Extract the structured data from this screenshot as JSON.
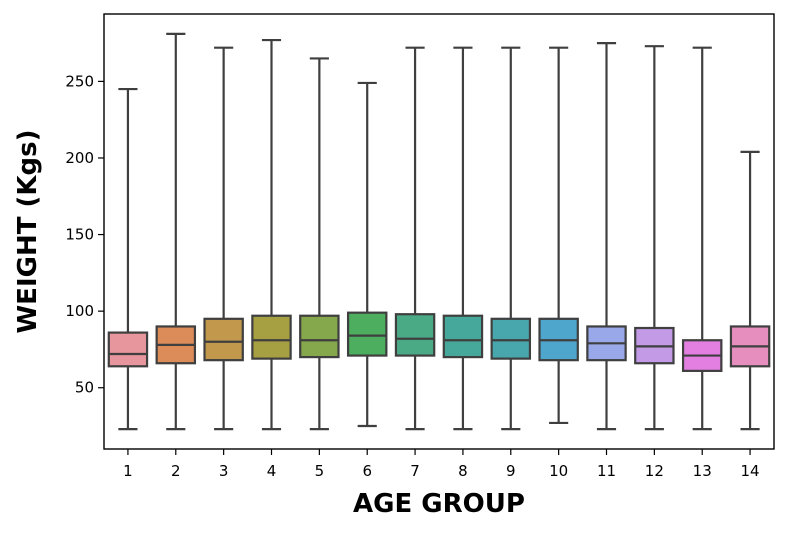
{
  "chart_data": {
    "type": "box",
    "xlabel": "AGE GROUP",
    "ylabel": "WEIGHT (Kgs)",
    "ylim": [
      10,
      294
    ],
    "yticks": [
      50,
      100,
      150,
      200,
      250
    ],
    "grid": false,
    "legend": "none",
    "categories": [
      "1",
      "2",
      "3",
      "4",
      "5",
      "6",
      "7",
      "8",
      "9",
      "10",
      "11",
      "12",
      "13",
      "14"
    ],
    "boxes": [
      {
        "category": "1",
        "whisker_low": 23,
        "q1": 64,
        "median": 72,
        "q3": 86,
        "whisker_high": 245,
        "color": "#e7969d"
      },
      {
        "category": "2",
        "whisker_low": 23,
        "q1": 66,
        "median": 78,
        "q3": 90,
        "whisker_high": 281,
        "color": "#db8c58"
      },
      {
        "category": "3",
        "whisker_low": 23,
        "q1": 68,
        "median": 80,
        "q3": 95,
        "whisker_high": 272,
        "color": "#c2984c"
      },
      {
        "category": "4",
        "whisker_low": 23,
        "q1": 69,
        "median": 81,
        "q3": 97,
        "whisker_high": 277,
        "color": "#a7a043"
      },
      {
        "category": "5",
        "whisker_low": 23,
        "q1": 70,
        "median": 81,
        "q3": 97,
        "whisker_high": 265,
        "color": "#84a84b"
      },
      {
        "category": "6",
        "whisker_low": 25,
        "q1": 71,
        "median": 84,
        "q3": 99,
        "whisker_high": 249,
        "color": "#4eae60"
      },
      {
        "category": "7",
        "whisker_low": 23,
        "q1": 71,
        "median": 82,
        "q3": 98,
        "whisker_high": 272,
        "color": "#4aaa86"
      },
      {
        "category": "8",
        "whisker_low": 23,
        "q1": 70,
        "median": 81,
        "q3": 97,
        "whisker_high": 272,
        "color": "#46a89b"
      },
      {
        "category": "9",
        "whisker_low": 23,
        "q1": 69,
        "median": 81,
        "q3": 95,
        "whisker_high": 272,
        "color": "#48a7ac"
      },
      {
        "category": "10",
        "whisker_low": 27,
        "q1": 68,
        "median": 81,
        "q3": 95,
        "whisker_high": 272,
        "color": "#4ea6cc"
      },
      {
        "category": "11",
        "whisker_low": 23,
        "q1": 68,
        "median": 79,
        "q3": 90,
        "whisker_high": 275,
        "color": "#98a8e8"
      },
      {
        "category": "12",
        "whisker_low": 23,
        "q1": 66,
        "median": 77,
        "q3": 89,
        "whisker_high": 273,
        "color": "#c39ae6"
      },
      {
        "category": "13",
        "whisker_low": 23,
        "q1": 61,
        "median": 71,
        "q3": 81,
        "whisker_high": 272,
        "color": "#e27fe0"
      },
      {
        "category": "14",
        "whisker_low": 23,
        "q1": 64,
        "median": 77,
        "q3": 90,
        "whisker_high": 204,
        "color": "#e68fbf"
      }
    ],
    "line_color": "#3f3f3f"
  }
}
